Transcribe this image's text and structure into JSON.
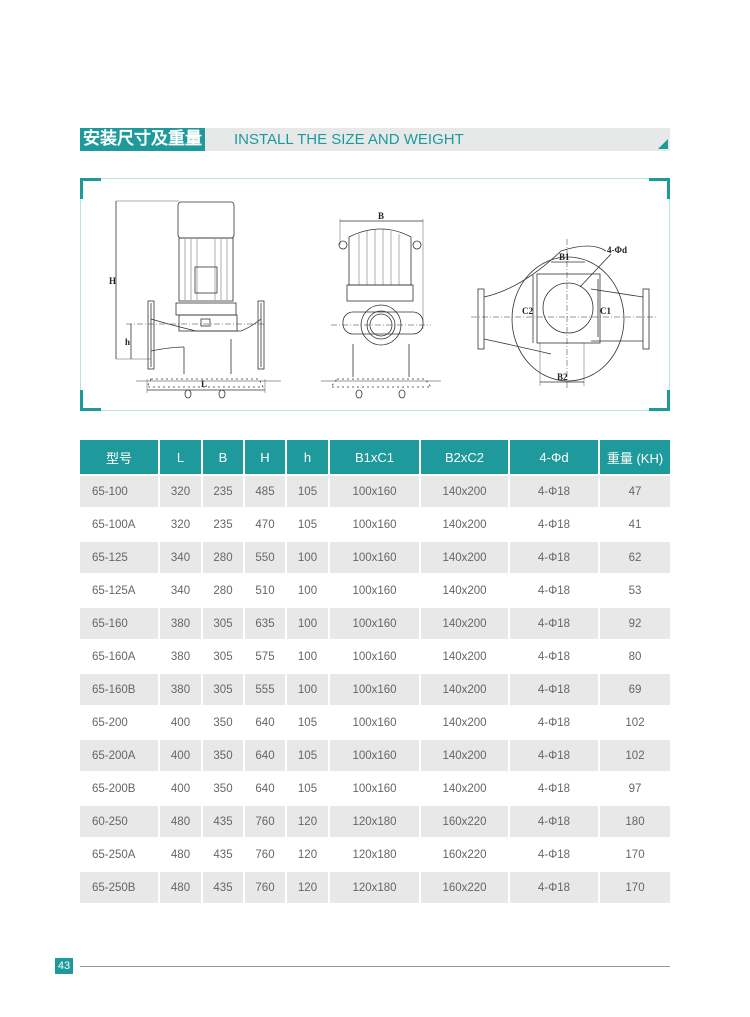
{
  "header": {
    "title_cn": "安装尺寸及重量",
    "title_en": "INSTALL THE SIZE AND WEIGHT"
  },
  "diagram": {
    "labels": {
      "H": "H",
      "h": "h",
      "L": "L",
      "B": "B",
      "B1": "B1",
      "B2": "B2",
      "C1": "C1",
      "C2": "C2",
      "holes": "4-Φd"
    }
  },
  "table": {
    "columns": [
      "型号",
      "L",
      "B",
      "H",
      "h",
      "B1xC1",
      "B2xC2",
      "4-Φd",
      "重量 (KH)"
    ],
    "rows": [
      [
        "65-100",
        "320",
        "235",
        "485",
        "105",
        "100x160",
        "140x200",
        "4-Φ18",
        "47"
      ],
      [
        "65-100A",
        "320",
        "235",
        "470",
        "105",
        "100x160",
        "140x200",
        "4-Φ18",
        "41"
      ],
      [
        "65-125",
        "340",
        "280",
        "550",
        "100",
        "100x160",
        "140x200",
        "4-Φ18",
        "62"
      ],
      [
        "65-125A",
        "340",
        "280",
        "510",
        "100",
        "100x160",
        "140x200",
        "4-Φ18",
        "53"
      ],
      [
        "65-160",
        "380",
        "305",
        "635",
        "100",
        "100x160",
        "140x200",
        "4-Φ18",
        "92"
      ],
      [
        "65-160A",
        "380",
        "305",
        "575",
        "100",
        "100x160",
        "140x200",
        "4-Φ18",
        "80"
      ],
      [
        "65-160B",
        "380",
        "305",
        "555",
        "100",
        "100x160",
        "140x200",
        "4-Φ18",
        "69"
      ],
      [
        "65-200",
        "400",
        "350",
        "640",
        "105",
        "100x160",
        "140x200",
        "4-Φ18",
        "102"
      ],
      [
        "65-200A",
        "400",
        "350",
        "640",
        "105",
        "100x160",
        "140x200",
        "4-Φ18",
        "102"
      ],
      [
        "65-200B",
        "400",
        "350",
        "640",
        "105",
        "100x160",
        "140x200",
        "4-Φ18",
        "97"
      ],
      [
        "60-250",
        "480",
        "435",
        "760",
        "120",
        "120x180",
        "160x220",
        "4-Φ18",
        "180"
      ],
      [
        "65-250A",
        "480",
        "435",
        "760",
        "120",
        "120x180",
        "160x220",
        "4-Φ18",
        "170"
      ],
      [
        "65-250B",
        "480",
        "435",
        "760",
        "120",
        "120x180",
        "160x220",
        "4-Φ18",
        "170"
      ]
    ]
  },
  "footer": {
    "page_number": "43"
  },
  "colors": {
    "accent": "#1f9a9c",
    "row_alt": "#e8e8e8",
    "title_bar": "#e7e8e8"
  }
}
